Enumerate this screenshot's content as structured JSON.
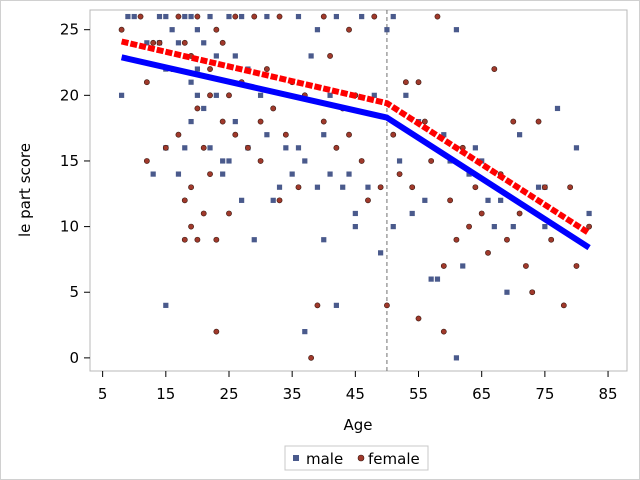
{
  "chart_data": {
    "type": "scatter",
    "title": "",
    "xlabel": "Age",
    "ylabel": "le part score",
    "xlim": [
      3,
      88
    ],
    "ylim": [
      -1,
      26.5
    ],
    "xticks": [
      "5",
      "15",
      "25",
      "35",
      "45",
      "55",
      "65",
      "75",
      "85"
    ],
    "yticks": [
      "0",
      "5",
      "10",
      "15",
      "20",
      "25"
    ],
    "reference_line_x": 50,
    "legend": {
      "placement": "bottom",
      "entries": [
        "male",
        "female"
      ]
    },
    "series": [
      {
        "name": "male",
        "kind": "scatter",
        "marker": "square",
        "color": "#4a5a8c",
        "points": [
          [
            8,
            20
          ],
          [
            9,
            26
          ],
          [
            10,
            26
          ],
          [
            12,
            24
          ],
          [
            13,
            14
          ],
          [
            14,
            24
          ],
          [
            14,
            26
          ],
          [
            15,
            4
          ],
          [
            15,
            16
          ],
          [
            15,
            22
          ],
          [
            15,
            26
          ],
          [
            16,
            25
          ],
          [
            17,
            14
          ],
          [
            17,
            24
          ],
          [
            18,
            26
          ],
          [
            18,
            16
          ],
          [
            19,
            21
          ],
          [
            19,
            18
          ],
          [
            19,
            26
          ],
          [
            20,
            25
          ],
          [
            20,
            20
          ],
          [
            20,
            22
          ],
          [
            21,
            24
          ],
          [
            21,
            19
          ],
          [
            22,
            26
          ],
          [
            22,
            16
          ],
          [
            23,
            20
          ],
          [
            23,
            23
          ],
          [
            24,
            15
          ],
          [
            24,
            14
          ],
          [
            25,
            26
          ],
          [
            25,
            15
          ],
          [
            26,
            18
          ],
          [
            26,
            23
          ],
          [
            27,
            26
          ],
          [
            27,
            12
          ],
          [
            28,
            16
          ],
          [
            28,
            22
          ],
          [
            29,
            9
          ],
          [
            30,
            20
          ],
          [
            31,
            17
          ],
          [
            31,
            26
          ],
          [
            32,
            12
          ],
          [
            33,
            13
          ],
          [
            34,
            16
          ],
          [
            35,
            14
          ],
          [
            36,
            16
          ],
          [
            36,
            26
          ],
          [
            37,
            2
          ],
          [
            37,
            15
          ],
          [
            38,
            23
          ],
          [
            39,
            13
          ],
          [
            39,
            25
          ],
          [
            40,
            9
          ],
          [
            40,
            17
          ],
          [
            41,
            14
          ],
          [
            41,
            20
          ],
          [
            42,
            4
          ],
          [
            42,
            26
          ],
          [
            43,
            13
          ],
          [
            44,
            14
          ],
          [
            45,
            11
          ],
          [
            45,
            10
          ],
          [
            46,
            26
          ],
          [
            47,
            13
          ],
          [
            48,
            20
          ],
          [
            49,
            8
          ],
          [
            50,
            25
          ],
          [
            51,
            10
          ],
          [
            51,
            26
          ],
          [
            52,
            15
          ],
          [
            53,
            20
          ],
          [
            54,
            11
          ],
          [
            55,
            18
          ],
          [
            56,
            12
          ],
          [
            57,
            6
          ],
          [
            58,
            6
          ],
          [
            59,
            17
          ],
          [
            60,
            15
          ],
          [
            61,
            0
          ],
          [
            61,
            25
          ],
          [
            62,
            7
          ],
          [
            63,
            14
          ],
          [
            64,
            16
          ],
          [
            65,
            15
          ],
          [
            66,
            12
          ],
          [
            67,
            10
          ],
          [
            68,
            12
          ],
          [
            69,
            5
          ],
          [
            70,
            10
          ],
          [
            71,
            17
          ],
          [
            74,
            13
          ],
          [
            75,
            10
          ],
          [
            75,
            13
          ],
          [
            77,
            19
          ],
          [
            80,
            16
          ],
          [
            82,
            11
          ]
        ]
      },
      {
        "name": "female",
        "kind": "scatter",
        "marker": "circle",
        "color": "#a0392b",
        "points": [
          [
            8,
            25
          ],
          [
            11,
            26
          ],
          [
            12,
            21
          ],
          [
            12,
            15
          ],
          [
            13,
            24
          ],
          [
            14,
            24
          ],
          [
            15,
            16
          ],
          [
            16,
            22
          ],
          [
            17,
            26
          ],
          [
            17,
            17
          ],
          [
            18,
            12
          ],
          [
            18,
            9
          ],
          [
            18,
            24
          ],
          [
            19,
            23
          ],
          [
            19,
            10
          ],
          [
            19,
            13
          ],
          [
            20,
            19
          ],
          [
            20,
            9
          ],
          [
            20,
            26
          ],
          [
            21,
            11
          ],
          [
            21,
            16
          ],
          [
            22,
            20
          ],
          [
            22,
            22
          ],
          [
            22,
            14
          ],
          [
            23,
            2
          ],
          [
            23,
            9
          ],
          [
            23,
            25
          ],
          [
            24,
            18
          ],
          [
            24,
            24
          ],
          [
            25,
            11
          ],
          [
            25,
            20
          ],
          [
            26,
            17
          ],
          [
            26,
            26
          ],
          [
            27,
            21
          ],
          [
            28,
            16
          ],
          [
            29,
            26
          ],
          [
            30,
            15
          ],
          [
            30,
            18
          ],
          [
            31,
            22
          ],
          [
            32,
            19
          ],
          [
            33,
            12
          ],
          [
            33,
            26
          ],
          [
            34,
            17
          ],
          [
            35,
            21
          ],
          [
            36,
            13
          ],
          [
            37,
            20
          ],
          [
            38,
            0
          ],
          [
            39,
            4
          ],
          [
            40,
            18
          ],
          [
            40,
            26
          ],
          [
            41,
            23
          ],
          [
            42,
            16
          ],
          [
            43,
            19
          ],
          [
            44,
            25
          ],
          [
            44,
            17
          ],
          [
            45,
            20
          ],
          [
            46,
            15
          ],
          [
            47,
            12
          ],
          [
            48,
            26
          ],
          [
            49,
            13
          ],
          [
            50,
            4
          ],
          [
            51,
            17
          ],
          [
            52,
            14
          ],
          [
            53,
            21
          ],
          [
            54,
            13
          ],
          [
            55,
            3
          ],
          [
            55,
            21
          ],
          [
            56,
            18
          ],
          [
            57,
            15
          ],
          [
            58,
            26
          ],
          [
            59,
            7
          ],
          [
            59,
            2
          ],
          [
            60,
            12
          ],
          [
            61,
            9
          ],
          [
            62,
            16
          ],
          [
            63,
            10
          ],
          [
            64,
            13
          ],
          [
            65,
            11
          ],
          [
            66,
            8
          ],
          [
            67,
            22
          ],
          [
            68,
            14
          ],
          [
            69,
            9
          ],
          [
            70,
            18
          ],
          [
            71,
            11
          ],
          [
            72,
            7
          ],
          [
            73,
            5
          ],
          [
            74,
            18
          ],
          [
            75,
            13
          ],
          [
            76,
            9
          ],
          [
            78,
            4
          ],
          [
            79,
            13
          ],
          [
            80,
            7
          ],
          [
            82,
            10
          ]
        ]
      },
      {
        "name": "male",
        "kind": "line",
        "color": "#0000ff",
        "points": [
          [
            8,
            22.9
          ],
          [
            50,
            18.3
          ],
          [
            82,
            8.4
          ]
        ]
      },
      {
        "name": "female",
        "kind": "line",
        "color": "#ff0000",
        "points": [
          [
            8,
            24.1
          ],
          [
            50,
            19.4
          ],
          [
            82,
            9.5
          ]
        ]
      }
    ]
  }
}
